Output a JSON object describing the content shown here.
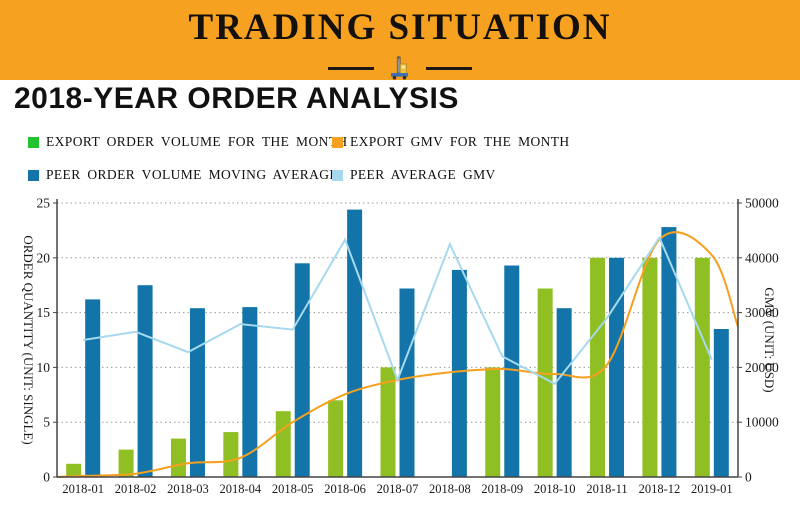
{
  "banner": {
    "title": "TRADING SITUATION"
  },
  "page": {
    "title": "2018-YEAR ORDER ANALYSIS"
  },
  "legend": [
    {
      "label": "EXPORT ORDER VOLUME FOR THE MONTH",
      "color": "#22c32e"
    },
    {
      "label": "EXPORT GMV FOR THE MONTH",
      "color": "#f5a01e"
    },
    {
      "label": "PEER ORDER VOLUME MOVING AVERAGE",
      "color": "#1274a8"
    },
    {
      "label": "PEER AVERAGE GMV",
      "color": "#a6d9ee"
    }
  ],
  "chart_data": {
    "type": "bar",
    "subtype": "grouped bars + two lines, dual y-axis",
    "categories": [
      "2018-01",
      "2018-02",
      "2018-03",
      "2018-04",
      "2018-05",
      "2018-06",
      "2018-07",
      "2018-08",
      "2018-09",
      "2018-10",
      "2018-11",
      "2018-12",
      "2019-01"
    ],
    "series": [
      {
        "name": "EXPORT ORDER VOLUME FOR THE MONTH",
        "type": "bar",
        "axis": "left",
        "color": "#8fbf22",
        "values": [
          1.2,
          2.5,
          3.5,
          4.1,
          6.0,
          7.0,
          10.0,
          0,
          10.0,
          17.2,
          20.0,
          20.0,
          20.0
        ]
      },
      {
        "name": "PEER ORDER VOLUME MOVING AVERAGE",
        "type": "bar",
        "axis": "left",
        "color": "#1274a8",
        "values": [
          16.2,
          17.5,
          15.4,
          15.5,
          19.5,
          24.4,
          17.2,
          18.9,
          19.3,
          15.4,
          20.0,
          22.8,
          13.5
        ]
      },
      {
        "name": "EXPORT GMV FOR THE MONTH",
        "type": "line",
        "axis": "right",
        "color": "#f5a01e",
        "smooth": true,
        "values": [
          200,
          600,
          2500,
          3500,
          10000,
          15100,
          17700,
          19100,
          19700,
          18800,
          20500,
          43300,
          40500
        ],
        "edge_start_value": 0,
        "edge_end_value": 27400
      },
      {
        "name": "PEER AVERAGE GMV",
        "type": "line",
        "axis": "right",
        "color": "#a6d9ee",
        "smooth": false,
        "values": [
          25000,
          26500,
          22800,
          27900,
          26900,
          43300,
          17700,
          42500,
          22000,
          17000,
          29000,
          43700,
          21400
        ]
      }
    ],
    "left_axis": {
      "title": "ORDER QUANTITY (UNIT: SINGLE)",
      "min": 0,
      "max": 25,
      "ticks": [
        0,
        5,
        10,
        15,
        20,
        25
      ]
    },
    "right_axis": {
      "title": "GMV (UNIT: USD)",
      "min": 0,
      "max": 50000,
      "ticks": [
        0,
        10000,
        20000,
        30000,
        40000,
        50000
      ]
    },
    "grid": "dotted horizontal gridlines",
    "legend_position": "top-left, two rows"
  }
}
